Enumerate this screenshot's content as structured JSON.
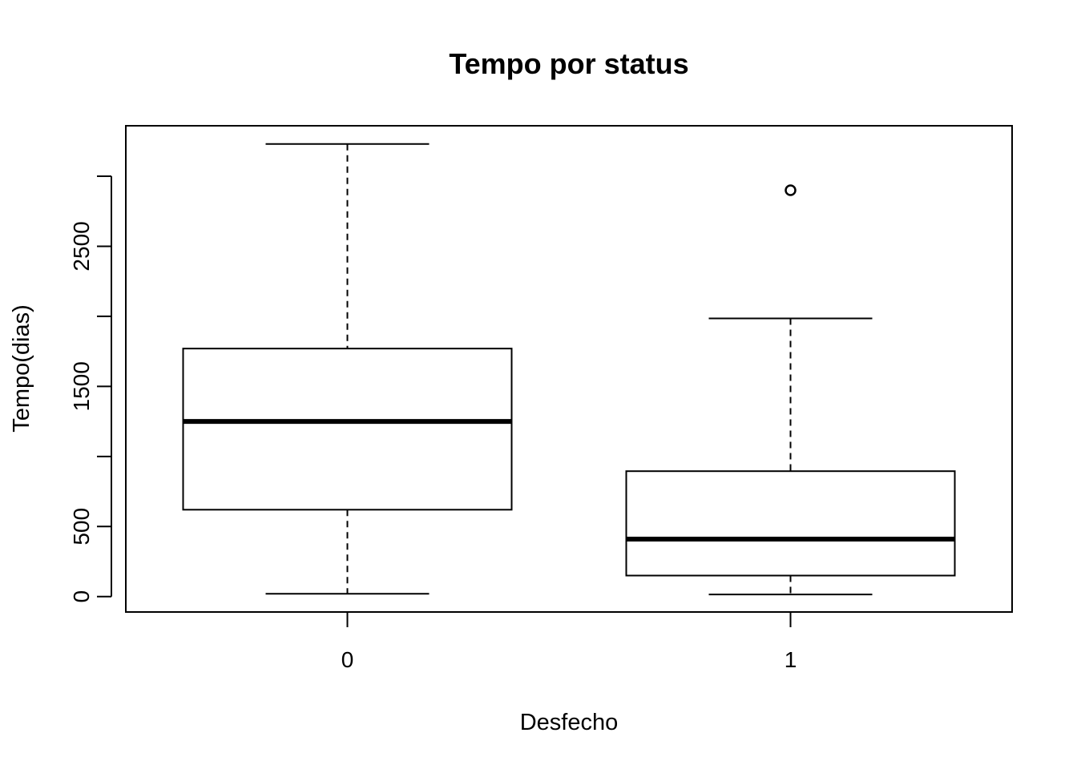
{
  "chart_data": {
    "type": "boxplot",
    "title": "Tempo por status",
    "xlabel": "Desfecho",
    "ylabel": "Tempo(dias)",
    "ylim": [
      -110,
      3360
    ],
    "yticks": [
      0,
      500,
      1000,
      1500,
      2000,
      2500,
      3000
    ],
    "ytick_labels": [
      "0",
      "500",
      "",
      "1500",
      "",
      "2500",
      ""
    ],
    "categories": [
      "0",
      "1"
    ],
    "boxes": [
      {
        "category": "0",
        "whisker_low": 20,
        "q1": 620,
        "median": 1250,
        "q3": 1770,
        "whisker_high": 3230,
        "outliers": []
      },
      {
        "category": "1",
        "whisker_low": 15,
        "q1": 150,
        "median": 410,
        "q3": 895,
        "whisker_high": 1985,
        "outliers": [
          2900
        ]
      }
    ]
  }
}
